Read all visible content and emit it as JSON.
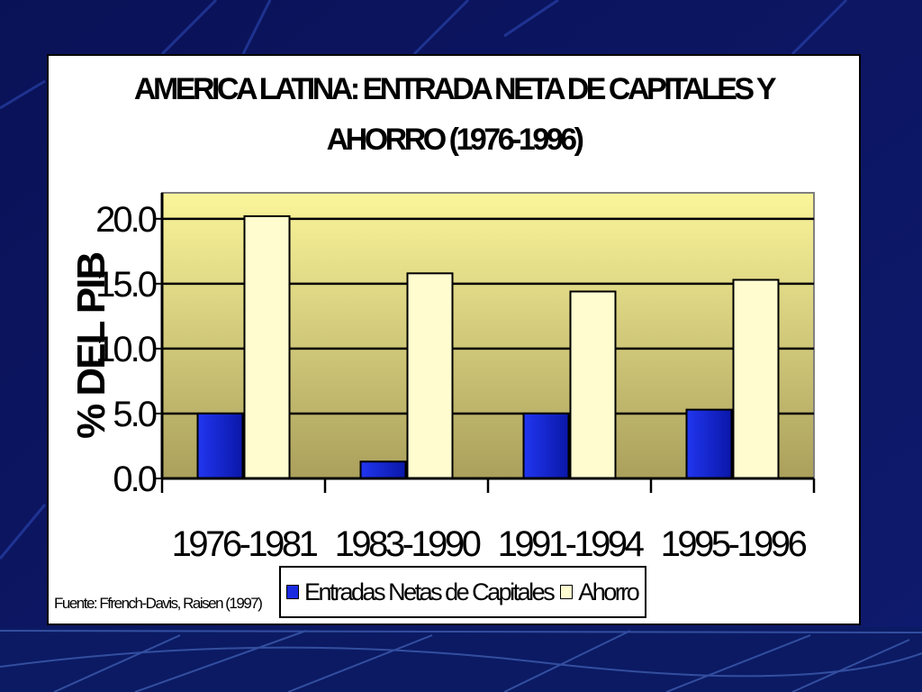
{
  "slide": {
    "background_color": "#0c1560"
  },
  "chart": {
    "title_line_1": "AMERICA LATINA: ENTRADA NETA DE CAPITALES Y",
    "title_line_2": "AHORRO (1976-1996)",
    "ylabel": "% DEL PIB",
    "source_note": "Fuente: Ffrench-Davis, Raisen (1997)"
  },
  "chart_data": {
    "type": "bar",
    "title": "AMERICA LATINA: ENTRADA NETA DE CAPITALES Y AHORRO (1976-1996)",
    "xlabel": "",
    "ylabel": "% DEL PIB",
    "categories": [
      "1976-1981",
      "1983-1990",
      "1991-1994",
      "1995-1996"
    ],
    "series": [
      {
        "name": "Entradas Netas de Capitales",
        "values": [
          5.0,
          1.3,
          5.0,
          5.3
        ],
        "color": "#1a2be0"
      },
      {
        "name": "Ahorro",
        "values": [
          20.2,
          15.8,
          14.4,
          15.3
        ],
        "color": "#fffcd0"
      }
    ],
    "ylim": [
      0,
      22
    ],
    "yticks": [
      "0.0",
      "5.0",
      "10.0",
      "15.0",
      "20.0"
    ],
    "grid": true,
    "legend_position": "bottom",
    "plot_background": "gradient yellow to olive"
  }
}
